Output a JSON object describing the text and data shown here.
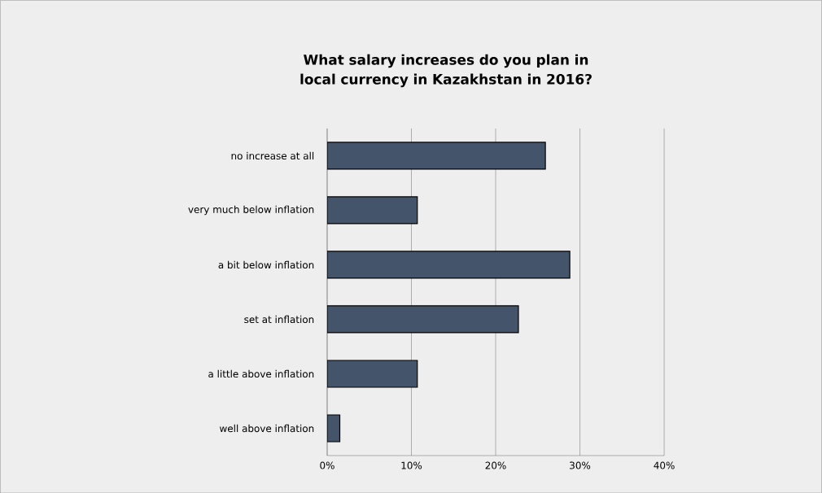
{
  "chart_data": {
    "type": "bar",
    "orientation": "horizontal",
    "title": "What salary increases do you plan in local currency in Kazakhstan in 2016?",
    "categories": [
      "no increase at all",
      "very much below inflation",
      "a bit below inflation",
      "set at inflation",
      "a little above inflation",
      "well above inflation"
    ],
    "values": [
      25.9,
      10.7,
      28.8,
      22.7,
      10.7,
      1.5
    ],
    "color": "#44546a",
    "xlim": [
      0,
      40
    ],
    "xticks": [
      {
        "value": 0,
        "label": "0%"
      },
      {
        "value": 10,
        "label": "10%"
      },
      {
        "value": 20,
        "label": "20%"
      },
      {
        "value": 30,
        "label": "30%"
      },
      {
        "value": 40,
        "label": "40%"
      }
    ],
    "grid": "x"
  }
}
